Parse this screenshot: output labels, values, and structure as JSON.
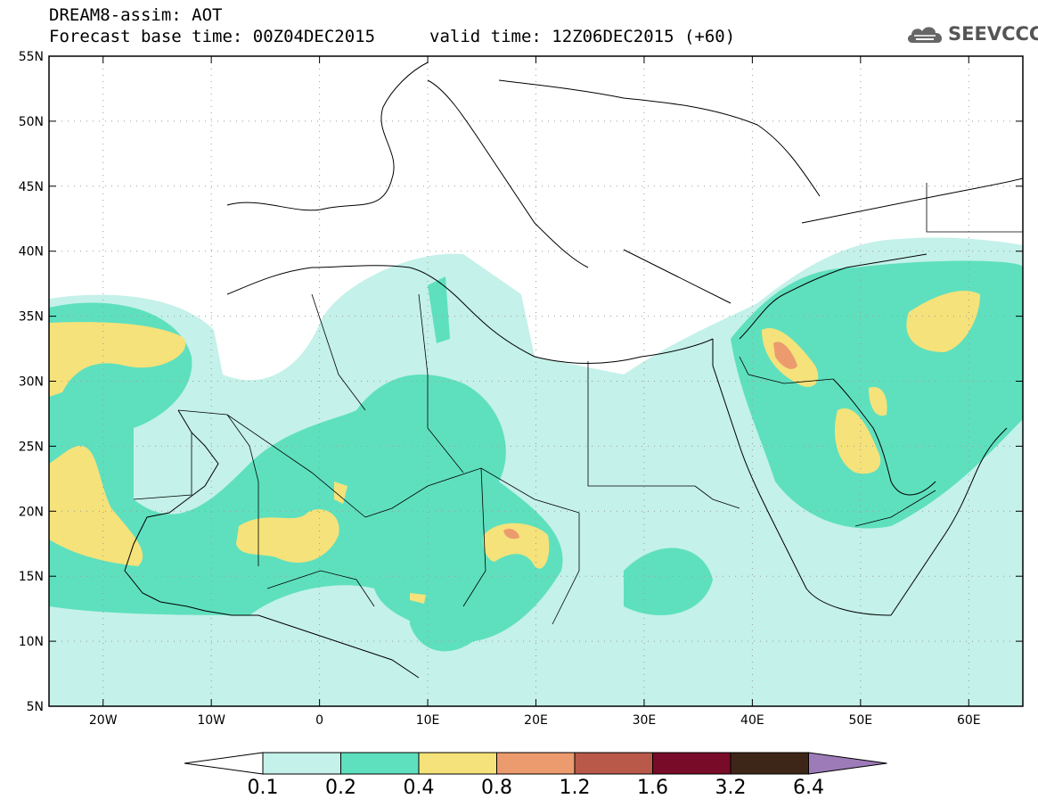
{
  "header": {
    "title_line1": "DREAM8-assim: AOT",
    "title_line2": "Forecast base time: 00Z04DEC2015",
    "valid_time": "valid time: 12Z06DEC2015 (+60)",
    "logo_text": "SEEVCCC",
    "logo_icon": "cloud-icon"
  },
  "map": {
    "lat_range": [
      5,
      55
    ],
    "lon_range": [
      -25,
      65
    ],
    "lat_ticks": [
      {
        "value": 55,
        "label": "55N"
      },
      {
        "value": 50,
        "label": "50N"
      },
      {
        "value": 45,
        "label": "45N"
      },
      {
        "value": 40,
        "label": "40N"
      },
      {
        "value": 35,
        "label": "35N"
      },
      {
        "value": 30,
        "label": "30N"
      },
      {
        "value": 25,
        "label": "25N"
      },
      {
        "value": 20,
        "label": "20N"
      },
      {
        "value": 15,
        "label": "15N"
      },
      {
        "value": 10,
        "label": "10N"
      },
      {
        "value": 5,
        "label": "5N"
      }
    ],
    "lon_ticks": [
      {
        "value": -20,
        "label": "20W"
      },
      {
        "value": -10,
        "label": "10W"
      },
      {
        "value": 0,
        "label": "0"
      },
      {
        "value": 10,
        "label": "10E"
      },
      {
        "value": 20,
        "label": "20E"
      },
      {
        "value": 30,
        "label": "30E"
      },
      {
        "value": 40,
        "label": "40E"
      },
      {
        "value": 50,
        "label": "50E"
      },
      {
        "value": 60,
        "label": "60E"
      }
    ]
  },
  "colorbar": {
    "labels": [
      "0.1",
      "0.2",
      "0.4",
      "0.8",
      "1.2",
      "1.6",
      "3.2",
      "6.4"
    ],
    "colors": [
      "#ffffff",
      "#c4f1e9",
      "#5ee0be",
      "#f5e27a",
      "#ec9b6e",
      "#b9594a",
      "#780b27",
      "#3d2618",
      "#9d7bb8"
    ]
  }
}
